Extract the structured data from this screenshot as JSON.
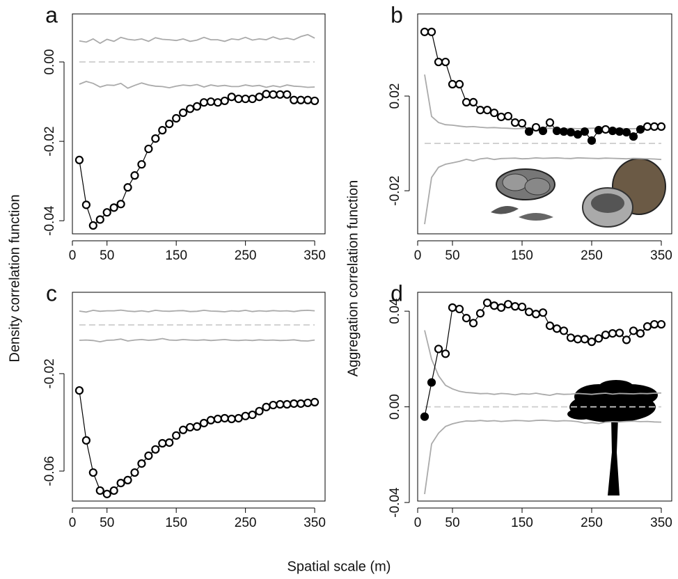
{
  "xlabel": "Spatial scale (m)",
  "ylabels": [
    "Density correlation function",
    "Aggregation correlation function"
  ],
  "chart_data": [
    {
      "type": "line",
      "label": "a",
      "x": [
        10,
        20,
        30,
        40,
        50,
        60,
        70,
        80,
        90,
        100,
        110,
        120,
        130,
        140,
        150,
        160,
        170,
        180,
        190,
        200,
        210,
        220,
        230,
        240,
        250,
        260,
        270,
        280,
        290,
        300,
        310,
        320,
        330,
        340,
        350
      ],
      "xlim": [
        0,
        365
      ],
      "xticks": [
        0,
        50,
        150,
        250,
        350
      ],
      "ylim": [
        -0.0433,
        0.0121
      ],
      "yticks": [
        -0.04,
        -0.02,
        {
          "value": 0,
          "label": "0.00"
        }
      ],
      "series": [
        {
          "color": "#aaaaaa",
          "values": [
            0.0053,
            0.005,
            0.0058,
            0.0047,
            0.0057,
            0.0052,
            0.0062,
            0.0057,
            0.0055,
            0.0058,
            0.0052,
            0.0061,
            0.0057,
            0.0056,
            0.0054,
            0.0058,
            0.0052,
            0.0055,
            0.0062,
            0.0056,
            0.0056,
            0.0052,
            0.0058,
            0.0056,
            0.0062,
            0.0055,
            0.0058,
            0.0056,
            0.0063,
            0.0057,
            0.006,
            0.0056,
            0.0064,
            0.0069,
            0.006
          ]
        },
        {
          "color": "#cccccc",
          "dash": true,
          "values": [
            0,
            0,
            0,
            0,
            0,
            0,
            0,
            0,
            0,
            0,
            0,
            0,
            0,
            0,
            0,
            0,
            0,
            0,
            0,
            0,
            0,
            0,
            0,
            0,
            0,
            0,
            0,
            0,
            0,
            0,
            0,
            0,
            0,
            0,
            0
          ]
        },
        {
          "color": "#aaaaaa",
          "values": [
            -0.0056,
            -0.0049,
            -0.0054,
            -0.0063,
            -0.0058,
            -0.0059,
            -0.0054,
            -0.0066,
            -0.0059,
            -0.0053,
            -0.0058,
            -0.0061,
            -0.0062,
            -0.0065,
            -0.0061,
            -0.0058,
            -0.006,
            -0.0057,
            -0.0063,
            -0.0058,
            -0.0061,
            -0.0059,
            -0.0062,
            -0.0062,
            -0.0058,
            -0.0061,
            -0.0059,
            -0.0064,
            -0.006,
            -0.0063,
            -0.0058,
            -0.0061,
            -0.0062,
            -0.0064,
            -0.0063
          ]
        },
        {
          "color": "#000000",
          "marker": "circle",
          "values": [
            -0.0247,
            -0.036,
            -0.0412,
            -0.0397,
            -0.0379,
            -0.0367,
            -0.0358,
            -0.0316,
            -0.0286,
            -0.0258,
            -0.0219,
            -0.0193,
            -0.0172,
            -0.0156,
            -0.0142,
            -0.0128,
            -0.0118,
            -0.0112,
            -0.0102,
            -0.01,
            -0.0102,
            -0.0098,
            -0.0088,
            -0.0093,
            -0.0093,
            -0.0093,
            -0.0088,
            -0.0081,
            -0.0082,
            -0.0082,
            -0.0082,
            -0.0096,
            -0.0096,
            -0.0096,
            -0.0098
          ]
        }
      ]
    },
    {
      "type": "line",
      "label": "b",
      "x": [
        10,
        20,
        30,
        40,
        50,
        60,
        70,
        80,
        90,
        100,
        110,
        120,
        130,
        140,
        150,
        160,
        170,
        180,
        190,
        200,
        210,
        220,
        230,
        240,
        250,
        260,
        270,
        280,
        290,
        300,
        310,
        320,
        330,
        340,
        350
      ],
      "xlim": [
        0,
        365
      ],
      "xticks": [
        0,
        50,
        150,
        250,
        350
      ],
      "ylim": [
        -0.0382,
        0.0547
      ],
      "yticks": [
        -0.02,
        0.02
      ],
      "series": [
        {
          "color": "#aaaaaa",
          "values": [
            0.0291,
            0.0114,
            0.0088,
            0.0079,
            0.0077,
            0.0073,
            0.007,
            0.0071,
            0.0068,
            0.0066,
            0.0067,
            0.0065,
            0.0064,
            0.0062,
            0.0063,
            0.0066,
            0.0064,
            0.0063,
            0.0064,
            0.0062,
            0.0061,
            0.0064,
            0.0062,
            0.0063,
            0.0064,
            0.0065,
            0.0062,
            0.0063,
            0.0064,
            0.0062,
            0.0062,
            0.0063,
            0.0061,
            0.0063,
            0.0064
          ]
        },
        {
          "color": "#cccccc",
          "dash": true,
          "values": [
            0,
            0,
            0,
            0,
            0,
            0,
            0,
            0,
            0,
            0,
            0,
            0,
            0,
            0,
            0,
            0,
            0,
            0,
            0,
            0,
            0,
            0,
            0,
            0,
            0,
            0,
            0,
            0,
            0,
            0,
            0,
            0,
            0,
            0,
            0
          ]
        },
        {
          "color": "#aaaaaa",
          "values": [
            -0.0341,
            -0.0144,
            -0.0101,
            -0.0088,
            -0.0082,
            -0.0076,
            -0.0067,
            -0.0074,
            -0.0065,
            -0.0062,
            -0.0068,
            -0.0064,
            -0.0063,
            -0.0062,
            -0.0065,
            -0.0064,
            -0.0061,
            -0.0063,
            -0.0062,
            -0.0061,
            -0.0063,
            -0.0064,
            -0.0061,
            -0.0062,
            -0.0063,
            -0.0064,
            -0.0062,
            -0.0063,
            -0.0064,
            -0.0065,
            -0.0063,
            -0.0064,
            -0.0065,
            -0.0066,
            -0.0068
          ]
        },
        {
          "color": "#000000",
          "marker": "circle",
          "values": [
            0.0471,
            0.0471,
            0.0344,
            0.0344,
            0.025,
            0.025,
            0.0174,
            0.0174,
            0.0141,
            0.0141,
            0.0129,
            0.0112,
            0.0115,
            0.0088,
            0.0085,
            0.005,
            0.0068,
            0.0053,
            0.0088,
            0.0053,
            0.005,
            0.0047,
            0.0038,
            0.005,
            0.0012,
            0.0056,
            0.0059,
            0.0053,
            0.005,
            0.0047,
            0.0029,
            0.0059,
            0.0071,
            0.0071,
            0.0071
          ],
          "filled": [
            false,
            false,
            false,
            false,
            false,
            false,
            false,
            false,
            false,
            false,
            false,
            false,
            false,
            false,
            false,
            true,
            false,
            true,
            false,
            true,
            true,
            true,
            true,
            true,
            true,
            true,
            false,
            true,
            true,
            true,
            true,
            true,
            false,
            false,
            false
          ]
        }
      ]
    },
    {
      "type": "line",
      "label": "c",
      "x": [
        10,
        20,
        30,
        40,
        50,
        60,
        70,
        80,
        90,
        100,
        110,
        120,
        130,
        140,
        150,
        160,
        170,
        180,
        190,
        200,
        210,
        220,
        230,
        240,
        250,
        260,
        270,
        280,
        290,
        300,
        310,
        320,
        330,
        340,
        350
      ],
      "xlim": [
        0,
        365
      ],
      "xticks": [
        0,
        50,
        150,
        250,
        350
      ],
      "ylim": [
        -0.0723,
        0.0134
      ],
      "yticks": [
        -0.06,
        -0.02
      ],
      "series": [
        {
          "color": "#aaaaaa",
          "values": [
            0.0057,
            0.0053,
            0.006,
            0.0056,
            0.0058,
            0.0058,
            0.0061,
            0.0057,
            0.0055,
            0.0058,
            0.0054,
            0.006,
            0.0057,
            0.0056,
            0.0058,
            0.0059,
            0.0055,
            0.0056,
            0.006,
            0.0057,
            0.0056,
            0.0054,
            0.0058,
            0.0056,
            0.006,
            0.0055,
            0.0058,
            0.0056,
            0.0059,
            0.0057,
            0.0058,
            0.0055,
            0.0059,
            0.006,
            0.0058
          ]
        },
        {
          "color": "#cccccc",
          "dash": true,
          "values": [
            0,
            0,
            0,
            0,
            0,
            0,
            0,
            0,
            0,
            0,
            0,
            0,
            0,
            0,
            0,
            0,
            0,
            0,
            0,
            0,
            0,
            0,
            0,
            0,
            0,
            0,
            0,
            0,
            0,
            0,
            0,
            0,
            0,
            0,
            0
          ]
        },
        {
          "color": "#aaaaaa",
          "values": [
            -0.0063,
            -0.0062,
            -0.0064,
            -0.0069,
            -0.0063,
            -0.0062,
            -0.0058,
            -0.0066,
            -0.0062,
            -0.006,
            -0.0063,
            -0.0061,
            -0.0056,
            -0.0062,
            -0.0063,
            -0.006,
            -0.0062,
            -0.0063,
            -0.0061,
            -0.0064,
            -0.0062,
            -0.006,
            -0.0063,
            -0.0064,
            -0.0062,
            -0.0064,
            -0.0061,
            -0.0063,
            -0.0062,
            -0.0064,
            -0.0063,
            -0.0061,
            -0.0065,
            -0.0066,
            -0.0062
          ]
        },
        {
          "color": "#000000",
          "marker": "circle",
          "values": [
            -0.0269,
            -0.0474,
            -0.0606,
            -0.068,
            -0.0694,
            -0.068,
            -0.0649,
            -0.0637,
            -0.0606,
            -0.0569,
            -0.0537,
            -0.0511,
            -0.0486,
            -0.0483,
            -0.0454,
            -0.0431,
            -0.042,
            -0.0417,
            -0.0403,
            -0.0391,
            -0.0386,
            -0.0383,
            -0.0386,
            -0.0383,
            -0.0374,
            -0.0369,
            -0.0354,
            -0.0337,
            -0.0329,
            -0.0326,
            -0.0326,
            -0.0323,
            -0.0323,
            -0.032,
            -0.0317
          ]
        }
      ]
    },
    {
      "type": "line",
      "label": "d",
      "x": [
        10,
        20,
        30,
        40,
        50,
        60,
        70,
        80,
        90,
        100,
        110,
        120,
        130,
        140,
        150,
        160,
        170,
        180,
        190,
        200,
        210,
        220,
        230,
        240,
        250,
        260,
        270,
        280,
        290,
        300,
        310,
        320,
        330,
        340,
        350
      ],
      "xlim": [
        0,
        365
      ],
      "xticks": [
        0,
        50,
        150,
        250,
        350
      ],
      "ylim": [
        -0.0394,
        0.0479
      ],
      "yticks": [
        -0.04,
        {
          "value": 0,
          "label": "0.00"
        },
        0.04
      ],
      "series": [
        {
          "color": "#aaaaaa",
          "values": [
            0.032,
            0.0199,
            0.013,
            0.009,
            0.0075,
            0.0065,
            0.006,
            0.0058,
            0.0055,
            0.0056,
            0.0052,
            0.0056,
            0.0054,
            0.005,
            0.0055,
            0.0053,
            0.0057,
            0.0052,
            0.0048,
            0.0055,
            0.0052,
            0.0053,
            0.0056,
            0.0054,
            0.0052,
            0.0055,
            0.0057,
            0.0053,
            0.0056,
            0.0055,
            0.0054,
            0.0056,
            0.0055,
            0.0057,
            0.0058
          ]
        },
        {
          "color": "#cccccc",
          "dash": true,
          "values": [
            0,
            0,
            0,
            0,
            0,
            0,
            0,
            0,
            0,
            0,
            0,
            0,
            0,
            0,
            0,
            0,
            0,
            0,
            0,
            0,
            0,
            0,
            0,
            0,
            0,
            0,
            0,
            0,
            0,
            0,
            0,
            0,
            0,
            0,
            0
          ]
        },
        {
          "color": "#aaaaaa",
          "values": [
            -0.0365,
            -0.0155,
            -0.011,
            -0.0082,
            -0.0071,
            -0.0064,
            -0.0059,
            -0.006,
            -0.0057,
            -0.006,
            -0.0058,
            -0.0061,
            -0.0059,
            -0.0057,
            -0.0058,
            -0.006,
            -0.0057,
            -0.0056,
            -0.0058,
            -0.006,
            -0.0058,
            -0.0059,
            -0.0062,
            -0.0068,
            -0.0066,
            -0.007,
            -0.0064,
            -0.0062,
            -0.0063,
            -0.0061,
            -0.006,
            -0.0062,
            -0.0061,
            -0.0063,
            -0.0064
          ]
        },
        {
          "color": "#000000",
          "marker": "circle",
          "values": [
            -0.0041,
            0.0102,
            0.0242,
            0.0222,
            0.0415,
            0.0409,
            0.0371,
            0.035,
            0.0391,
            0.0435,
            0.0423,
            0.0415,
            0.0429,
            0.042,
            0.0418,
            0.0397,
            0.0388,
            0.0394,
            0.0339,
            0.0327,
            0.0318,
            0.0289,
            0.0283,
            0.0283,
            0.0272,
            0.0286,
            0.0301,
            0.0307,
            0.0309,
            0.028,
            0.0318,
            0.0307,
            0.0336,
            0.0345,
            0.0345
          ],
          "filled": [
            true,
            true,
            false,
            false,
            false,
            false,
            false,
            false,
            false,
            false,
            false,
            false,
            false,
            false,
            false,
            false,
            false,
            false,
            false,
            false,
            false,
            false,
            false,
            false,
            false,
            false,
            false,
            false,
            false,
            false,
            false,
            false,
            false,
            false,
            false
          ]
        }
      ]
    }
  ]
}
